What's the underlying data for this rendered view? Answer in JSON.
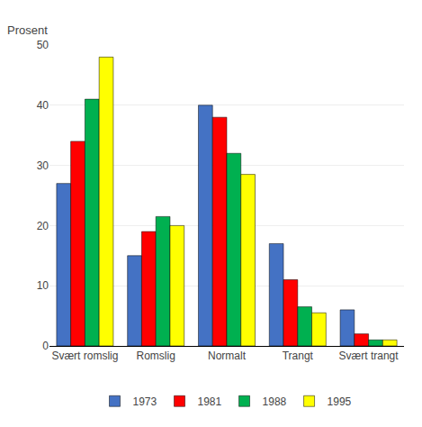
{
  "chart_data": {
    "type": "bar",
    "ylabel": "Prosent",
    "categories": [
      "Svært romslig",
      "Romslig",
      "Normalt",
      "Trangt",
      "Svært trangt"
    ],
    "series": [
      {
        "name": "1973",
        "color": "#4472C4",
        "values": [
          27,
          15,
          40,
          17,
          6
        ]
      },
      {
        "name": "1981",
        "color": "#FF0000",
        "values": [
          34,
          19,
          38,
          11,
          2
        ]
      },
      {
        "name": "1988",
        "color": "#00B050",
        "values": [
          41,
          21.5,
          32,
          6.5,
          1
        ]
      },
      {
        "name": "1995",
        "color": "#FFFF00",
        "values": [
          48,
          20,
          28.5,
          5.5,
          1
        ]
      }
    ],
    "ylim": [
      0,
      50
    ],
    "yticks": [
      0,
      10,
      20,
      30,
      40,
      50
    ],
    "grid": true,
    "legend": "bottom"
  }
}
